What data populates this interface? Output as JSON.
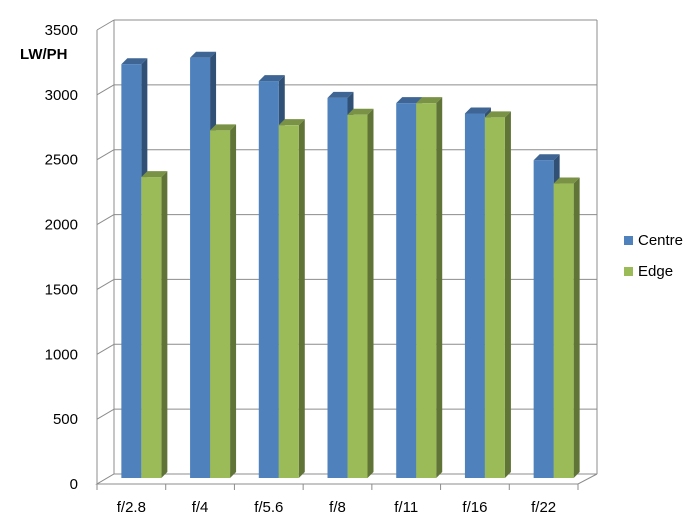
{
  "chart_data": {
    "type": "bar",
    "style": "3d-clustered-column",
    "ylabel": "LW/PH",
    "xlabel": "",
    "ylim": [
      0,
      3500
    ],
    "yticks": [
      0,
      500,
      1000,
      1500,
      2000,
      2500,
      3000,
      3500
    ],
    "ytick_labels": [
      "0",
      "500",
      "1000",
      "1500",
      "2000",
      "2500",
      "3000",
      "3500"
    ],
    "categories": [
      "f/2.8",
      "f/4",
      "f/5.6",
      "f/8",
      "f/11",
      "f/16",
      "f/22"
    ],
    "series": [
      {
        "name": "Centre",
        "values": [
          3190,
          3240,
          3060,
          2930,
          2890,
          2810,
          2450
        ],
        "color": "#4f81bd"
      },
      {
        "name": "Edge",
        "values": [
          2320,
          2680,
          2720,
          2800,
          2890,
          2780,
          2270
        ],
        "color": "#9bbb59"
      }
    ],
    "grid": true,
    "legend_position": "right"
  }
}
